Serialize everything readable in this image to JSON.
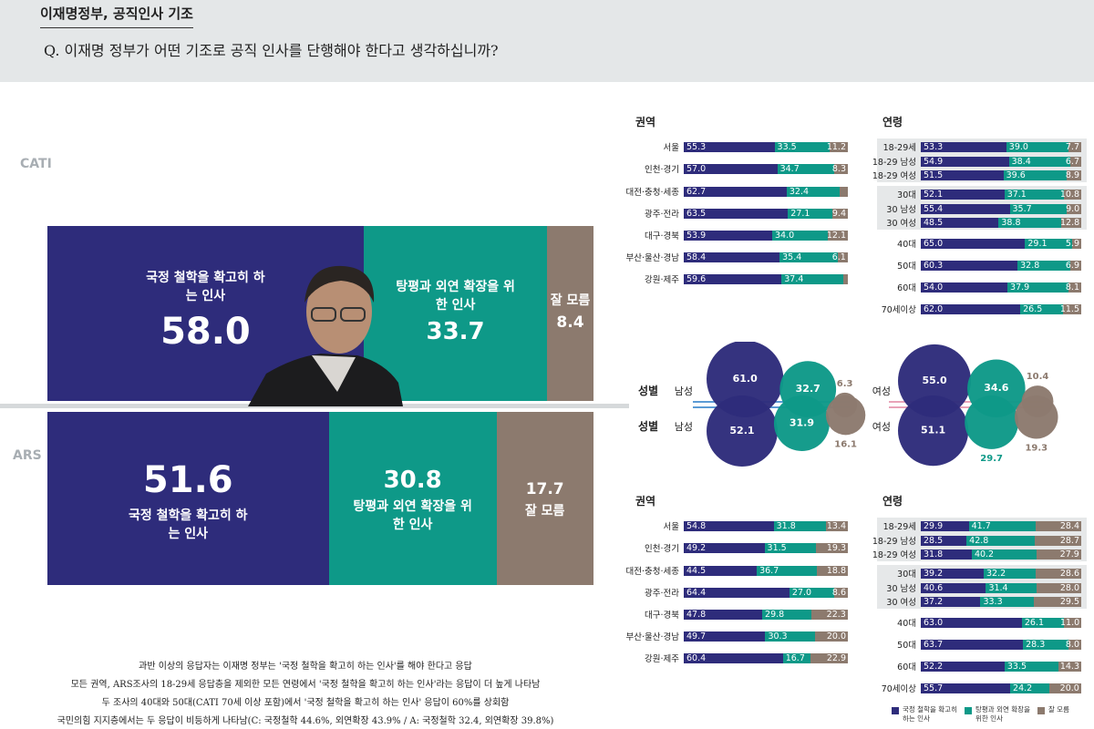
{
  "header": {
    "title": "이재명정부, 공직인사 기조",
    "question": "Q. 이재명 정부가 어떤 기조로 공직 인사를 단행해야 한다고 생각하십니까?"
  },
  "chart_data": [
    {
      "type": "bar",
      "title": "CATI",
      "stacked": true,
      "orientation": "horizontal",
      "xlim": [
        0,
        100
      ],
      "series": [
        {
          "name": "국정 철학을 확고히 하는 인사",
          "color": "#2e2c7b",
          "values": [
            58.0
          ],
          "value_labels": [
            "58.0"
          ]
        },
        {
          "name": "탕평과 외연 확장을 위한 인사",
          "color": "#0e9988",
          "values": [
            33.7
          ],
          "value_labels": [
            "33.7"
          ]
        },
        {
          "name": "잘 모름",
          "color": "#8c7a6e",
          "values": [
            8.4
          ],
          "value_labels": [
            "8.4"
          ]
        }
      ]
    },
    {
      "type": "bar",
      "title": "ARS",
      "stacked": true,
      "orientation": "horizontal",
      "xlim": [
        0,
        100
      ],
      "series": [
        {
          "name": "국정 철학을 확고히 하는 인사",
          "color": "#2e2c7b",
          "values": [
            51.6
          ],
          "value_labels": [
            "51.6"
          ]
        },
        {
          "name": "탕평과 외연 확장을 위한 인사",
          "color": "#0e9988",
          "values": [
            30.8
          ],
          "value_labels": [
            "30.8"
          ]
        },
        {
          "name": "잘 모름",
          "color": "#8c7a6e",
          "values": [
            17.7
          ],
          "value_labels": [
            "17.7"
          ]
        }
      ]
    },
    {
      "type": "bar",
      "title": "권역",
      "stacked": true,
      "orientation": "horizontal",
      "xlim": [
        0,
        100
      ],
      "categories": [
        "서울",
        "인천·경기",
        "대전·충청·세종",
        "광주·전라",
        "대구·경북",
        "부산·울산·경남",
        "강원·제주"
      ],
      "series": [
        {
          "color": "#2e2c7b",
          "values": [
            55.3,
            57.0,
            62.7,
            63.5,
            53.9,
            58.4,
            59.6
          ],
          "value_labels": [
            "55.3",
            "57.0",
            "62.7",
            "63.5",
            "53.9",
            "58.4",
            "59.6"
          ]
        },
        {
          "color": "#0e9988",
          "values": [
            33.5,
            34.7,
            32.4,
            27.1,
            34.0,
            35.4,
            37.4
          ],
          "value_labels": [
            "33.5",
            "34.7",
            "32.4",
            "27.1",
            "34.0",
            "35.4",
            "37.4"
          ]
        },
        {
          "color": "#8c7a6e",
          "values": [
            11.2,
            8.3,
            4.9,
            9.4,
            12.1,
            6.1,
            3.0
          ],
          "value_labels": [
            "11.2",
            "8.3",
            null,
            "9.4",
            "12.1",
            "6.1",
            null
          ]
        }
      ]
    },
    {
      "type": "bar",
      "title": "연령",
      "stacked": true,
      "orientation": "horizontal",
      "xlim": [
        0,
        100
      ],
      "categories": [
        "18-29세",
        "18-29 남성",
        "18-29 여성",
        "30대",
        "30 남성",
        "30 여성",
        "40대",
        "50대",
        "60대",
        "70세이상"
      ],
      "series": [
        {
          "color": "#2e2c7b",
          "values": [
            53.3,
            54.9,
            51.5,
            52.1,
            55.4,
            48.5,
            65.0,
            60.3,
            54.0,
            62.0
          ],
          "value_labels": [
            "53.3",
            "54.9",
            "51.5",
            "52.1",
            "55.4",
            "48.5",
            "65.0",
            "60.3",
            "54.0",
            "62.0"
          ]
        },
        {
          "color": "#0e9988",
          "values": [
            39.0,
            38.4,
            39.6,
            37.1,
            35.7,
            38.8,
            29.1,
            32.8,
            37.9,
            26.5
          ],
          "value_labels": [
            "39.0",
            "38.4",
            "39.6",
            "37.1",
            "35.7",
            "38.8",
            "29.1",
            "32.8",
            "37.9",
            "26.5"
          ]
        },
        {
          "color": "#8c7a6e",
          "values": [
            7.7,
            6.7,
            8.9,
            10.8,
            9.0,
            12.8,
            5.9,
            6.9,
            8.1,
            11.5
          ],
          "value_labels": [
            "7.7",
            "6.7",
            "8.9",
            "10.8",
            "9.0",
            "12.8",
            "5.9",
            "6.9",
            "8.1",
            "11.5"
          ]
        }
      ]
    },
    {
      "type": "bubble",
      "title": "성별",
      "categories": [
        "남성",
        "여성"
      ],
      "series": [
        {
          "color": "#2e2c7b",
          "values": [
            61.0,
            55.0
          ],
          "value_labels": [
            "61.0",
            "55.0"
          ]
        },
        {
          "color": "#0e9988",
          "values": [
            32.7,
            34.6
          ],
          "value_labels": [
            "32.7",
            "34.6"
          ]
        },
        {
          "color": "#8c7a6e",
          "values": [
            6.3,
            10.4
          ],
          "value_labels": [
            "6.3",
            "10.4"
          ]
        }
      ]
    },
    {
      "type": "bubble",
      "title": "성별",
      "categories": [
        "남성",
        "여성"
      ],
      "series": [
        {
          "color": "#2e2c7b",
          "values": [
            52.1,
            51.1
          ],
          "value_labels": [
            "52.1",
            "51.1"
          ]
        },
        {
          "color": "#0e9988",
          "values": [
            31.9,
            29.7
          ],
          "value_labels": [
            "31.9",
            "29.7"
          ]
        },
        {
          "color": "#8c7a6e",
          "values": [
            16.1,
            19.3
          ],
          "value_labels": [
            "16.1",
            "19.3"
          ]
        }
      ]
    },
    {
      "type": "bar",
      "title": "권역",
      "stacked": true,
      "orientation": "horizontal",
      "xlim": [
        0,
        100
      ],
      "categories": [
        "서울",
        "인천·경기",
        "대전·충청·세종",
        "광주·전라",
        "대구·경북",
        "부산·울산·경남",
        "강원·제주"
      ],
      "series": [
        {
          "color": "#2e2c7b",
          "values": [
            54.8,
            49.2,
            44.5,
            64.4,
            47.8,
            49.7,
            60.4
          ],
          "value_labels": [
            "54.8",
            "49.2",
            "44.5",
            "64.4",
            "47.8",
            "49.7",
            "60.4"
          ]
        },
        {
          "color": "#0e9988",
          "values": [
            31.8,
            31.5,
            36.7,
            27.0,
            29.8,
            30.3,
            16.7
          ],
          "value_labels": [
            "31.8",
            "31.5",
            "36.7",
            "27.0",
            "29.8",
            "30.3",
            "16.7"
          ]
        },
        {
          "color": "#8c7a6e",
          "values": [
            13.4,
            19.3,
            18.8,
            8.6,
            22.3,
            20.0,
            22.9
          ],
          "value_labels": [
            "13.4",
            "19.3",
            "18.8",
            "8.6",
            "22.3",
            "20.0",
            "22.9"
          ]
        }
      ]
    },
    {
      "type": "bar",
      "title": "연령",
      "stacked": true,
      "orientation": "horizontal",
      "xlim": [
        0,
        100
      ],
      "legend": "bottom-right",
      "categories": [
        "18-29세",
        "18-29 남성",
        "18-29 여성",
        "30대",
        "30 남성",
        "30 여성",
        "40대",
        "50대",
        "60대",
        "70세이상"
      ],
      "series": [
        {
          "name": "국정 철학을 확고히 하는 인사",
          "color": "#2e2c7b",
          "values": [
            29.9,
            28.5,
            31.8,
            39.2,
            40.6,
            37.2,
            63.0,
            63.7,
            52.2,
            55.7
          ],
          "value_labels": [
            "29.9",
            "28.5",
            "31.8",
            "39.2",
            "40.6",
            "37.2",
            "63.0",
            "63.7",
            "52.2",
            "55.7"
          ]
        },
        {
          "name": "탕평과 외연 확장을 위한 인사",
          "color": "#0e9988",
          "values": [
            41.7,
            42.8,
            40.2,
            32.2,
            31.4,
            33.3,
            26.1,
            28.3,
            33.5,
            24.2
          ],
          "value_labels": [
            "41.7",
            "42.8",
            "40.2",
            "32.2",
            "31.4",
            "33.3",
            "26.1",
            "28.3",
            "33.5",
            "24.2"
          ]
        },
        {
          "name": "잘 모름",
          "color": "#8c7a6e",
          "values": [
            28.4,
            28.7,
            27.9,
            28.6,
            28.0,
            29.5,
            11.0,
            8.0,
            14.3,
            20.0
          ],
          "value_labels": [
            "28.4",
            "28.7",
            "27.9",
            "28.6",
            "28.0",
            "29.5",
            "11.0",
            "8.0",
            "14.3",
            "20.0"
          ]
        }
      ]
    }
  ],
  "notes": [
    "과반 이상의 응답자는 이재명 정부는 '국정 철학을 확고히 하는 인사'를 해야 한다고 응답",
    "모든 권역, ARS조사의 18-29세 응답층을 제외한 모든 연령에서 '국정 철학을 확고히 하는 인사'라는 응답이 더 높게 나타남",
    "두 조사의 40대와 50대(CATI 70세 이상 포함)에서 '국정 철학을 확고히 하는 인사' 응답이 60%를 상회함",
    "국민의힘 지지층에서는 두 응답이 비등하게 나타남(C: 국정철학 44.6%, 외연확장 43.9% / A: 국정철학 32.4, 외연확장 39.8%)"
  ]
}
